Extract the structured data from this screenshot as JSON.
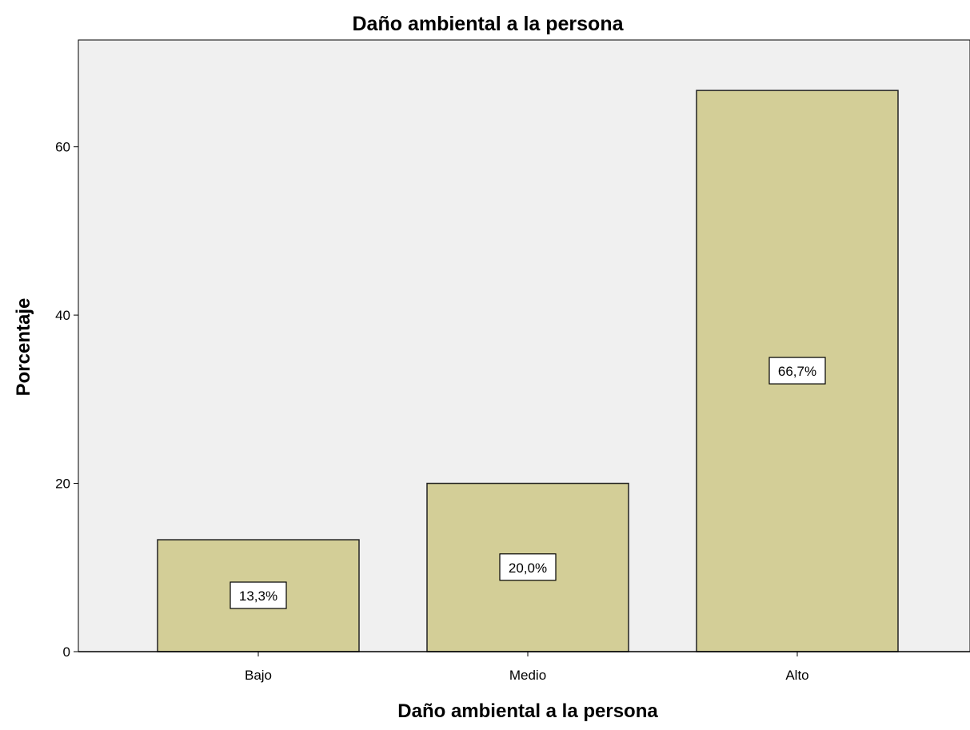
{
  "chart_data": {
    "type": "bar",
    "title": "Daño ambiental a la persona",
    "xlabel": "Daño ambiental a la persona",
    "ylabel": "Porcentaje",
    "categories": [
      "Bajo",
      "Medio",
      "Alto"
    ],
    "values": [
      13.3,
      20.0,
      66.7
    ],
    "data_labels": [
      "13,3%",
      "20,0%",
      "66,7%"
    ],
    "ylim": [
      0,
      72.7
    ],
    "yticks": [
      0,
      20,
      40,
      60
    ],
    "ytick_labels": [
      "0",
      "20",
      "40",
      "60"
    ],
    "grid": false,
    "legend": "none",
    "colors": {
      "plot_background": "#f0f0f0",
      "bar_fill": "#d3ce97",
      "bar_stroke": "#222222",
      "axis": "#000000",
      "label_box": "#ffffff"
    }
  }
}
